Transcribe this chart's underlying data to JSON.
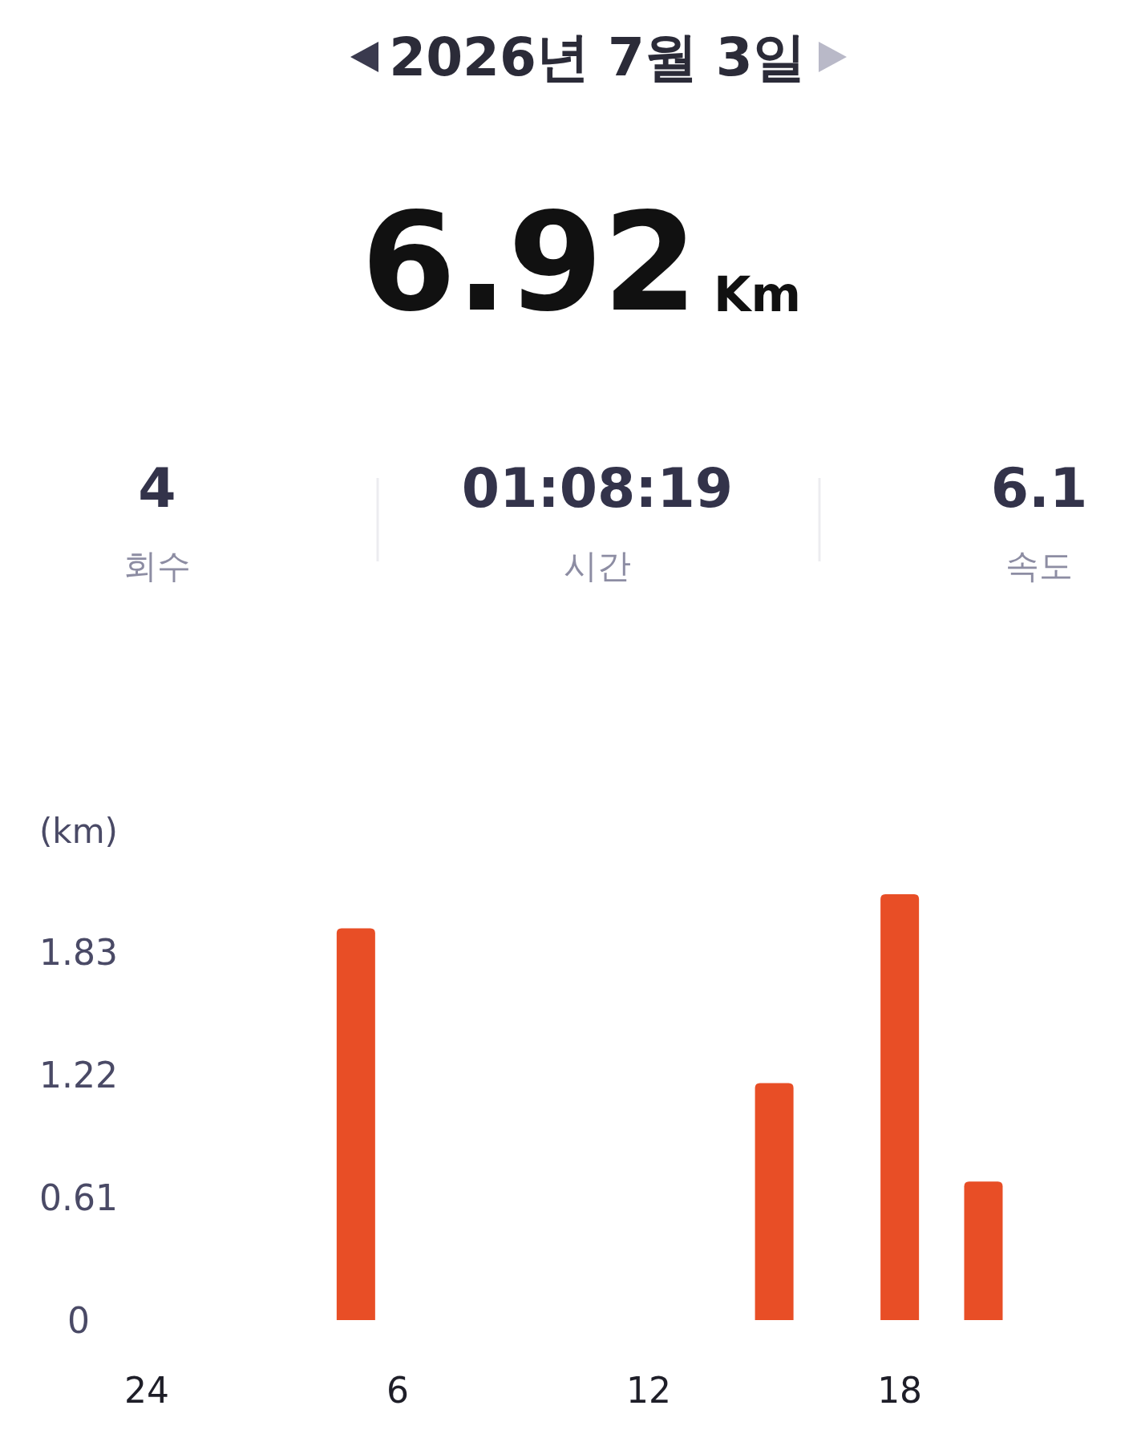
{
  "chart_data": {
    "type": "bar",
    "title": "2026년 7월 3일",
    "ylabel": "(km)",
    "annotations": [
      "6.92",
      "Km",
      "4",
      "회수",
      "01:08:19",
      "시간",
      "6.1",
      "속도"
    ],
    "categories": [
      "24",
      null,
      null,
      null,
      null,
      null,
      "6",
      null,
      null,
      null,
      null,
      null,
      "12",
      null,
      null,
      null,
      null,
      null,
      "18",
      null,
      null,
      null,
      null,
      null
    ],
    "values": [
      null,
      null,
      null,
      null,
      null,
      1.95,
      null,
      null,
      null,
      null,
      null,
      null,
      null,
      null,
      null,
      1.18,
      null,
      null,
      2.12,
      null,
      0.69,
      null,
      null,
      null
    ],
    "color": "#e84e26",
    "ylim": [
      0,
      2.12
    ],
    "yticks": [
      0,
      0.61,
      1.22,
      1.83
    ]
  }
}
